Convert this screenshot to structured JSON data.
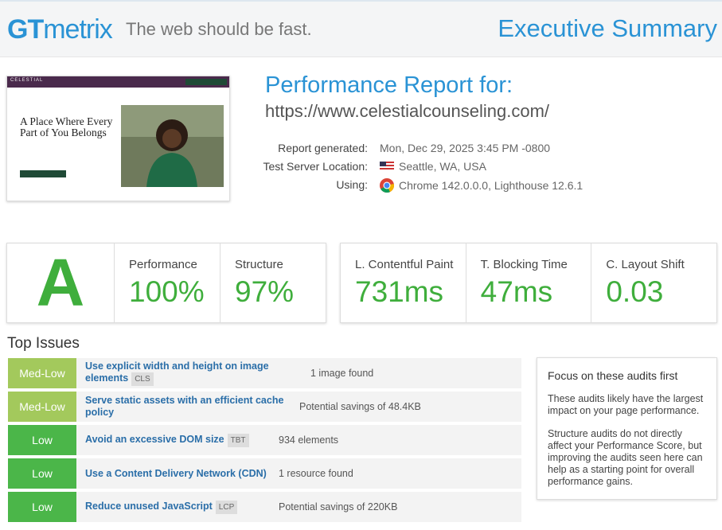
{
  "header": {
    "logo_gt": "GT",
    "logo_metrix": "metrix",
    "tagline": "The web should be fast.",
    "title": "Executive Summary"
  },
  "screenshot": {
    "brand": "CELESTIAL",
    "headline": "A Place Where Every Part of You Belongs"
  },
  "report": {
    "heading": "Performance Report for:",
    "url": "https://www.celestialcounseling.com/",
    "details": [
      {
        "label": "Report generated:",
        "value": "Mon, Dec 29, 2025 3:45 PM -0800"
      },
      {
        "label": "Test Server Location:",
        "value": "Seattle, WA, USA"
      },
      {
        "label": "Using:",
        "value": "Chrome 142.0.0.0, Lighthouse 12.6.1"
      }
    ]
  },
  "grade": "A",
  "scores": [
    {
      "label": "Performance",
      "value": "100%"
    },
    {
      "label": "Structure",
      "value": "97%"
    }
  ],
  "web_vitals": [
    {
      "label": "L. Contentful Paint",
      "value": "731ms"
    },
    {
      "label": "T. Blocking Time",
      "value": "47ms"
    },
    {
      "label": "C. Layout Shift",
      "value": "0.03"
    }
  ],
  "top_issues": {
    "title": "Top Issues",
    "rows": [
      {
        "impact": "Med-Low",
        "color": "#a3c95c",
        "audit": "Use explicit width and height on image elements",
        "tag": "CLS",
        "detail": "1 image found"
      },
      {
        "impact": "Med-Low",
        "color": "#a3c95c",
        "audit": "Serve static assets with an efficient cache policy",
        "detail": "Potential savings of 48.4KB"
      },
      {
        "impact": "Low",
        "color": "#4bb649",
        "audit": "Avoid an excessive DOM size",
        "tag": "TBT",
        "detail": "934 elements"
      },
      {
        "impact": "Low",
        "color": "#4bb649",
        "audit": "Use a Content Delivery Network (CDN)",
        "detail": "1 resource found"
      },
      {
        "impact": "Low",
        "color": "#4bb649",
        "audit": "Reduce unused JavaScript",
        "tag": "LCP",
        "detail": "Potential savings of 220KB"
      }
    ]
  },
  "sidebar": {
    "title": "Focus on these audits first",
    "paragraphs": [
      "These audits likely have the largest impact on your page performance.",
      "Structure audits do not directly affect your Performance Score, but improving the audits seen here can help as a starting point for overall performance gains."
    ]
  }
}
